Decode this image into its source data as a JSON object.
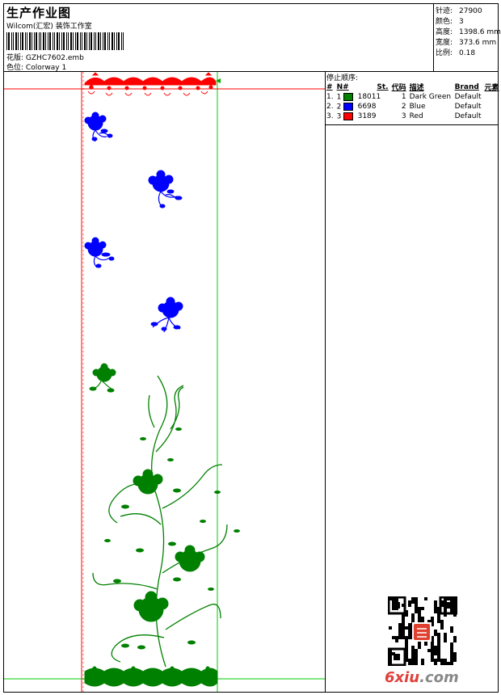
{
  "header": {
    "title": "生产作业图",
    "company": "Wilcom(汇宏) 装饰工作室",
    "design_label": "花版:",
    "design_value": "GZHC7602.emb",
    "colorway_label": "色位:",
    "colorway_value": "Colorway 1"
  },
  "specs": [
    {
      "label": "针迹:",
      "value": "27900"
    },
    {
      "label": "颜色:",
      "value": "3"
    },
    {
      "label": "高度:",
      "value": "1398.6 mm"
    },
    {
      "label": "宽度:",
      "value": "373.6 mm"
    },
    {
      "label": "比例:",
      "value": "0.18"
    }
  ],
  "stop_sequence": {
    "title": "停止顺序:",
    "columns": [
      "#",
      "N#",
      "St.",
      "代码",
      "描述",
      "Brand",
      "元素"
    ],
    "rows": [
      {
        "idx": "1.",
        "n": "1",
        "color": "#008000",
        "stitches": "18011",
        "code": "1",
        "desc": "Dark Green",
        "brand": "Default"
      },
      {
        "idx": "2.",
        "n": "2",
        "color": "#0000ff",
        "stitches": "6698",
        "code": "2",
        "desc": "Blue",
        "brand": "Default"
      },
      {
        "idx": "3.",
        "n": "3",
        "color": "#ff0000",
        "stitches": "3189",
        "code": "3",
        "desc": "Red",
        "brand": "Default"
      }
    ]
  },
  "canvas_colors": {
    "green": "#008000",
    "blue": "#0000ff",
    "red": "#ff0000",
    "guide_red": "#ff0000",
    "guide_green": "#00cc00"
  },
  "watermark": {
    "brand": "6xiu",
    "suffix": ".com"
  }
}
